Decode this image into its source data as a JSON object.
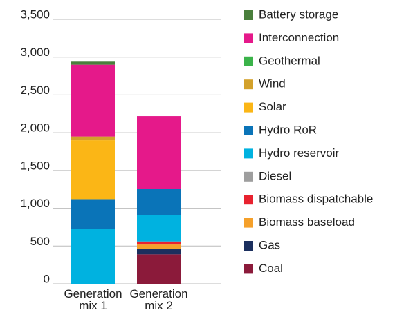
{
  "chart_data": {
    "type": "stacked_bar",
    "categories": [
      "Generation mix 1",
      "Generation mix 2"
    ],
    "series": [
      {
        "name": "Coal",
        "color": "#8b1a3a",
        "values": [
          0,
          390
        ]
      },
      {
        "name": "Gas",
        "color": "#1b2f5e",
        "values": [
          0,
          70
        ]
      },
      {
        "name": "Biomass baseload",
        "color": "#f5a02a",
        "values": [
          0,
          60
        ]
      },
      {
        "name": "Biomass dispatchable",
        "color": "#e8222f",
        "values": [
          0,
          40
        ]
      },
      {
        "name": "Diesel",
        "color": "#9e9e9e",
        "values": [
          0,
          0
        ]
      },
      {
        "name": "Hydro reservoir",
        "color": "#00b2e0",
        "values": [
          730,
          350
        ]
      },
      {
        "name": "Hydro RoR",
        "color": "#0a74b8",
        "values": [
          390,
          350
        ]
      },
      {
        "name": "Solar",
        "color": "#fbb616",
        "values": [
          780,
          0
        ]
      },
      {
        "name": "Wind",
        "color": "#d3a12b",
        "values": [
          50,
          0
        ]
      },
      {
        "name": "Geothermal",
        "color": "#3bb34a",
        "values": [
          0,
          0
        ]
      },
      {
        "name": "Interconnection",
        "color": "#e5198a",
        "values": [
          950,
          960
        ]
      },
      {
        "name": "Battery storage",
        "color": "#4a7f3c",
        "values": [
          40,
          0
        ]
      }
    ],
    "ylim": [
      0,
      3500
    ],
    "yticks": [
      0,
      500,
      {
        "value": 1000,
        "label": "1,000"
      },
      {
        "value": 1500,
        "label": "1,500"
      },
      {
        "value": 2000,
        "label": "2,000"
      },
      {
        "value": 2500,
        "label": "2,500"
      },
      {
        "value": 3000,
        "label": "3,000"
      },
      {
        "value": 3500,
        "label": "3,500"
      }
    ],
    "grid": true
  }
}
